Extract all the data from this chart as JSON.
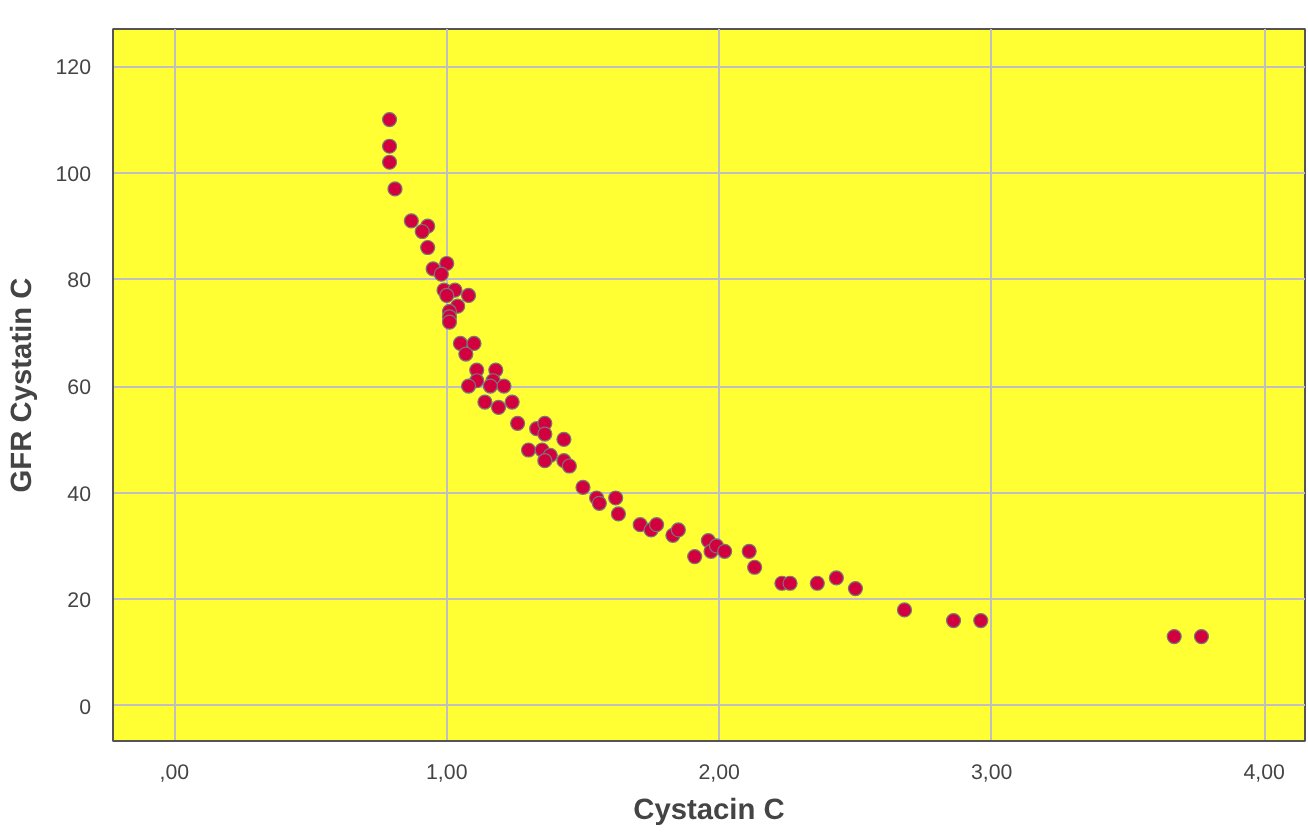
{
  "chart_data": {
    "type": "scatter",
    "xlabel": "Cystacin C",
    "ylabel": "GFR Cystatin C",
    "xlim": [
      -0.225,
      4.15
    ],
    "ylim": [
      -6.6,
      127
    ],
    "xticks": [
      {
        "value": 0,
        "label": ",00"
      },
      {
        "value": 1,
        "label": "1,00"
      },
      {
        "value": 2,
        "label": "2,00"
      },
      {
        "value": 3,
        "label": "3,00"
      },
      {
        "value": 4,
        "label": "4,00"
      }
    ],
    "yticks": [
      0,
      20,
      40,
      60,
      80,
      100,
      120
    ],
    "grid": true,
    "marker": "circle",
    "series": [
      {
        "color": "#d3003f",
        "x": [
          0.79,
          0.79,
          0.79,
          0.81,
          0.87,
          0.93,
          0.91,
          0.93,
          0.95,
          1.0,
          0.98,
          0.99,
          1.03,
          1.08,
          1.0,
          1.04,
          1.01,
          1.01,
          1.01,
          1.05,
          1.1,
          1.07,
          1.11,
          1.18,
          1.11,
          1.17,
          1.21,
          1.08,
          1.16,
          1.14,
          1.19,
          1.24,
          1.26,
          1.33,
          1.36,
          1.36,
          1.43,
          1.3,
          1.35,
          1.38,
          1.36,
          1.43,
          1.45,
          1.5,
          1.55,
          1.56,
          1.62,
          1.63,
          1.71,
          1.75,
          1.77,
          1.83,
          1.85,
          1.91,
          1.96,
          1.97,
          1.99,
          2.02,
          2.11,
          2.13,
          2.23,
          2.26,
          2.36,
          2.43,
          2.5,
          2.68,
          2.86,
          2.96,
          3.67,
          3.77
        ],
        "values": [
          110,
          105,
          102,
          97,
          91,
          90,
          89,
          86,
          82,
          83,
          81,
          78,
          78,
          77,
          77,
          75,
          74,
          73,
          72,
          68,
          68,
          66,
          63,
          63,
          61,
          61,
          60,
          60,
          60,
          57,
          56,
          57,
          53,
          52,
          53,
          51,
          50,
          48,
          48,
          47,
          46,
          46,
          45,
          41,
          39,
          38,
          39,
          36,
          34,
          33,
          34,
          32,
          33,
          28,
          31,
          29,
          30,
          29,
          29,
          26,
          23,
          23,
          23,
          24,
          22,
          18,
          16,
          16,
          13,
          13
        ]
      }
    ]
  }
}
